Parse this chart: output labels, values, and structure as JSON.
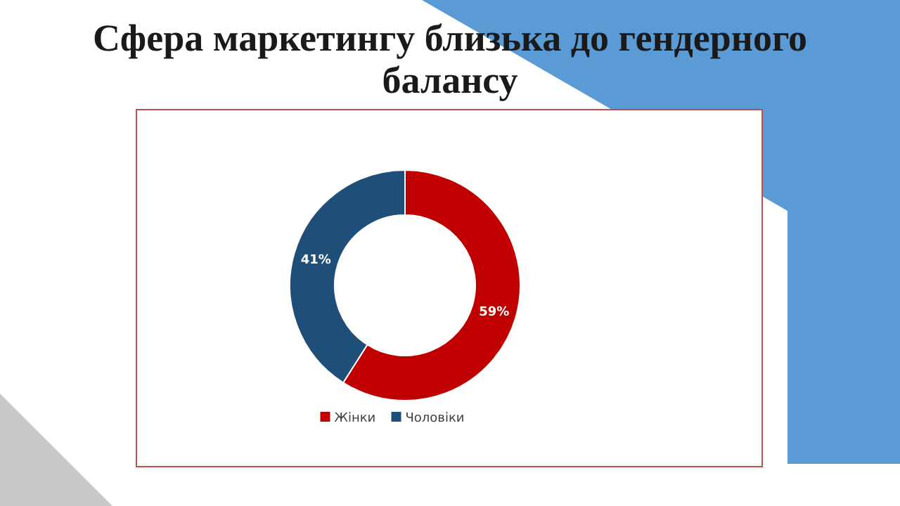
{
  "chart_data": {
    "type": "donut",
    "title": "Сфера маркетингу близька до гендерного балансу",
    "categories": [
      "Жінки",
      "Чоловіки"
    ],
    "values": [
      59,
      41
    ],
    "colors": [
      "#c00000",
      "#1f4e79"
    ],
    "value_labels": [
      "59%",
      "41%"
    ],
    "legend": "bottom"
  }
}
